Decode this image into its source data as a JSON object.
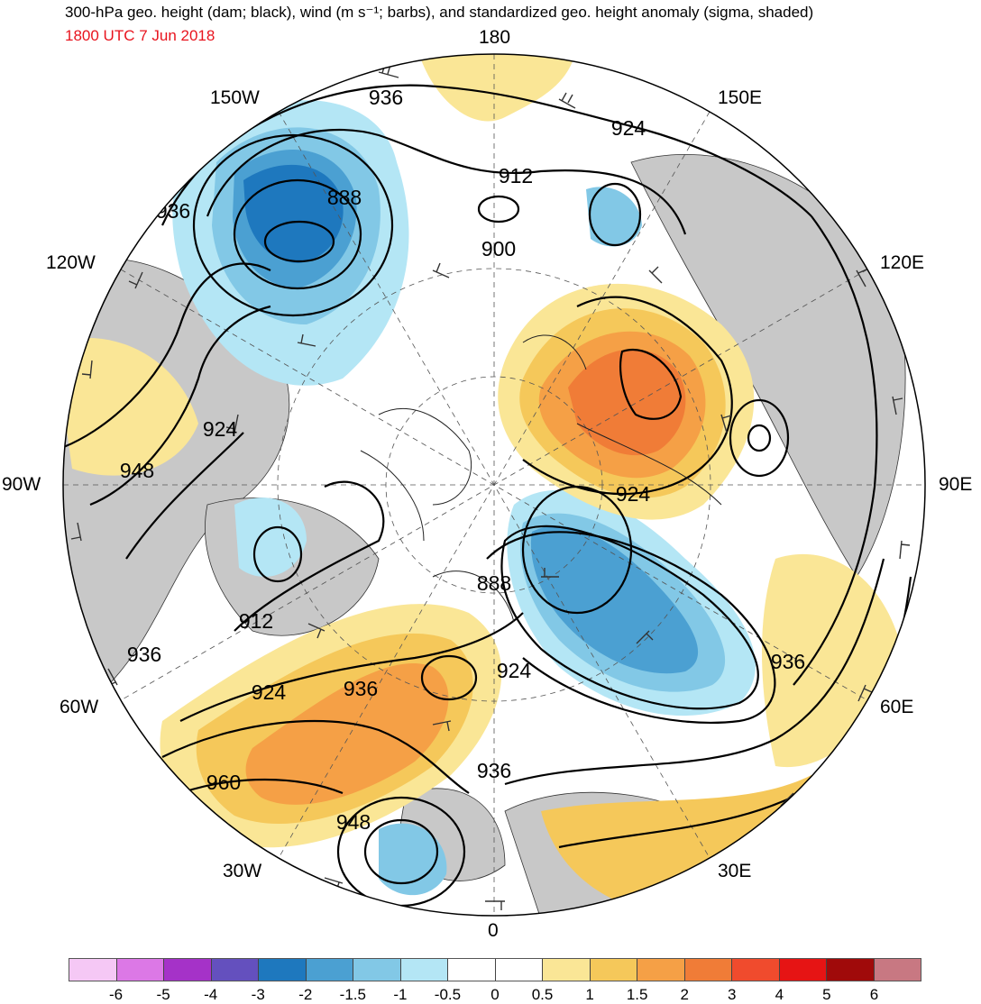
{
  "header": {
    "title": "300-hPa geo. height (dam; black), wind (m s⁻¹; barbs), and standardized geo. height anomaly (sigma, shaded)",
    "valid_time": "1800 UTC 7 Jun 2018"
  },
  "longitude_labels": {
    "lon_180": "180",
    "lon_150e": "150E",
    "lon_120e": "120E",
    "lon_90e": "90E",
    "lon_60e": "60E",
    "lon_30e": "30E",
    "lon_0": "0",
    "lon_30w": "30W",
    "lon_60w": "60W",
    "lon_90w": "90W",
    "lon_120w": "120W",
    "lon_150w": "150W"
  },
  "contour_labels": [
    "936",
    "924",
    "912",
    "888",
    "900",
    "936",
    "924",
    "948",
    "924",
    "912",
    "936",
    "888",
    "924",
    "936",
    "924",
    "936",
    "960",
    "948",
    "936"
  ],
  "colorbar": {
    "colors": [
      "#f5c8f5",
      "#dc78e6",
      "#a532c8",
      "#6450be",
      "#1e78be",
      "#4ba0d2",
      "#82c8e6",
      "#b4e6f5",
      "#ffffff",
      "#ffffff",
      "#fae696",
      "#f5c85a",
      "#f5a046",
      "#f07c37",
      "#f04b2d",
      "#e61414",
      "#a00a0a",
      "#c87882"
    ],
    "tick_labels": [
      "-6",
      "-5",
      "-4",
      "-3",
      "-2",
      "-1.5",
      "-1",
      "-0.5",
      "0",
      "0.5",
      "1",
      "1.5",
      "2",
      "3",
      "4",
      "5",
      "6"
    ]
  }
}
